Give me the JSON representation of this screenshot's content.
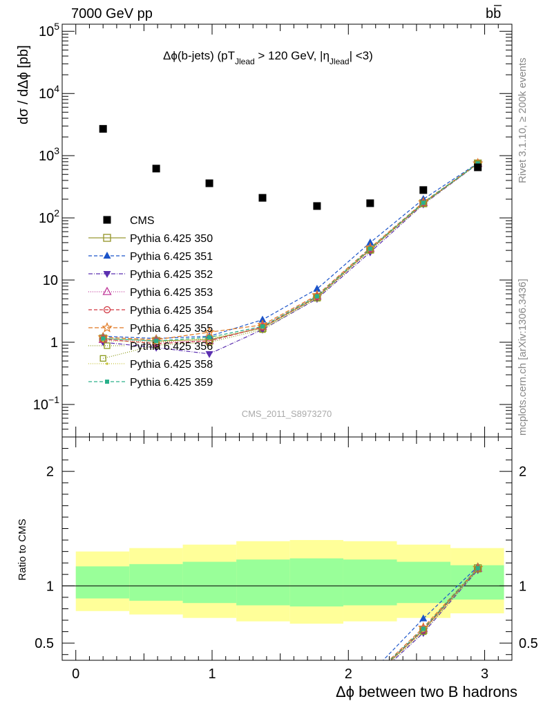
{
  "header": {
    "left": "7000 GeV pp",
    "right_main": "b",
    "right_bar": "b"
  },
  "side_labels": {
    "rivet": "Rivet 3.1.10, ≥ 200k events",
    "mcplots": "mcplots.cern.ch [arXiv:1306.3436]"
  },
  "watermark": "CMS_2011_S8973270",
  "chart_data": {
    "type": "scatter",
    "title_parts": {
      "a": "Δϕ(b-jets) (pT",
      "a_sub": "Jlead",
      "b": " >  120 GeV, |η",
      "b_sub": "Jlead",
      "c": "| <3)"
    },
    "main_ylabel": "dσ / dΔϕ [pb]",
    "ratio_ylabel": "Ratio to CMS",
    "xlabel": "Δϕ between two B hadrons",
    "xlim": [
      -0.1,
      3.2
    ],
    "main_ylog": true,
    "main_ylim": [
      0.03,
      130000
    ],
    "ratio_ylim": [
      0.35,
      2.3
    ],
    "x_ticks": [
      {
        "v": 0,
        "label": "0"
      },
      {
        "v": 1,
        "label": "1"
      },
      {
        "v": 2,
        "label": "2"
      },
      {
        "v": 3,
        "label": "3"
      }
    ],
    "main_y_ticks": [
      {
        "v": 0.1,
        "base": "10",
        "exp": "−1"
      },
      {
        "v": 1,
        "base": "1",
        "exp": ""
      },
      {
        "v": 10,
        "base": "10",
        "exp": ""
      },
      {
        "v": 100,
        "base": "10",
        "exp": "2"
      },
      {
        "v": 1000,
        "base": "10",
        "exp": "3"
      },
      {
        "v": 10000,
        "base": "10",
        "exp": "4"
      },
      {
        "v": 100000,
        "base": "10",
        "exp": "5"
      }
    ],
    "ratio_y_ticks": [
      {
        "v": 0.5,
        "label": "0.5"
      },
      {
        "v": 1,
        "label": "1"
      },
      {
        "v": 2,
        "label": "2"
      }
    ],
    "bin_edges": [
      0,
      0.393,
      0.785,
      1.178,
      1.571,
      1.963,
      2.356,
      2.749,
      3.142
    ],
    "band_outer": [
      [
        0.78,
        1.3
      ],
      [
        0.75,
        1.33
      ],
      [
        0.72,
        1.36
      ],
      [
        0.69,
        1.39
      ],
      [
        0.67,
        1.4
      ],
      [
        0.69,
        1.39
      ],
      [
        0.72,
        1.36
      ],
      [
        0.76,
        1.33
      ]
    ],
    "band_inner": [
      [
        0.89,
        1.17
      ],
      [
        0.87,
        1.19
      ],
      [
        0.85,
        1.21
      ],
      [
        0.83,
        1.23
      ],
      [
        0.82,
        1.24
      ],
      [
        0.83,
        1.23
      ],
      [
        0.85,
        1.21
      ],
      [
        0.88,
        1.18
      ]
    ],
    "x": [
      0.2,
      0.59,
      0.98,
      1.37,
      1.77,
      2.16,
      2.55,
      2.95
    ],
    "cms": {
      "name": "CMS",
      "values": [
        2700,
        620,
        360,
        210,
        155,
        172,
        280,
        650
      ]
    },
    "series": [
      {
        "name": "Pythia 6.425 350",
        "color": "#999933",
        "marker": "open-square",
        "dash": "",
        "values": [
          1.15,
          1.05,
          1.1,
          1.7,
          5.3,
          31,
          172,
          750
        ]
      },
      {
        "name": "Pythia 6.425 351",
        "color": "#1a53c9",
        "marker": "tri-up",
        "dash": "5,3",
        "values": [
          1.25,
          1.15,
          1.25,
          2.3,
          7.2,
          40,
          200,
          760
        ]
      },
      {
        "name": "Pythia 6.425 352",
        "color": "#5b2fb0",
        "marker": "tri-down",
        "dash": "6,2,1,2",
        "values": [
          1.0,
          0.82,
          0.65,
          1.6,
          5.0,
          28,
          165,
          740
        ]
      },
      {
        "name": "Pythia 6.425 353",
        "color": "#c0399a",
        "marker": "open-tri",
        "dash": "1,2",
        "values": [
          1.1,
          1.0,
          1.05,
          1.8,
          5.5,
          32,
          175,
          748
        ]
      },
      {
        "name": "Pythia 6.425 354",
        "color": "#d0353f",
        "marker": "open-circle",
        "dash": "5,3",
        "values": [
          1.12,
          0.95,
          1.05,
          1.75,
          5.4,
          31,
          172,
          745
        ]
      },
      {
        "name": "Pythia 6.425 355",
        "color": "#e07820",
        "marker": "open-star",
        "dash": "6,3",
        "values": [
          1.2,
          1.1,
          1.45,
          1.9,
          5.7,
          33,
          178,
          752
        ]
      },
      {
        "name": "Pythia 6.425 356",
        "color": "#8b9a1a",
        "marker": "open-square-small",
        "dash": "1,2",
        "values": [
          0.55,
          0.9,
          1.0,
          1.6,
          5.1,
          30,
          168,
          745
        ]
      },
      {
        "name": "Pythia 6.425 358",
        "color": "#c6c23a",
        "marker": "dot",
        "dash": "1,2",
        "values": [
          1.05,
          1.0,
          1.15,
          1.7,
          5.3,
          31,
          170,
          746
        ]
      },
      {
        "name": "Pythia 6.425 359",
        "color": "#2ab08a",
        "marker": "filled-square-small",
        "dash": "5,3",
        "values": [
          1.15,
          1.05,
          1.2,
          1.8,
          5.5,
          32,
          175,
          750
        ]
      }
    ]
  }
}
